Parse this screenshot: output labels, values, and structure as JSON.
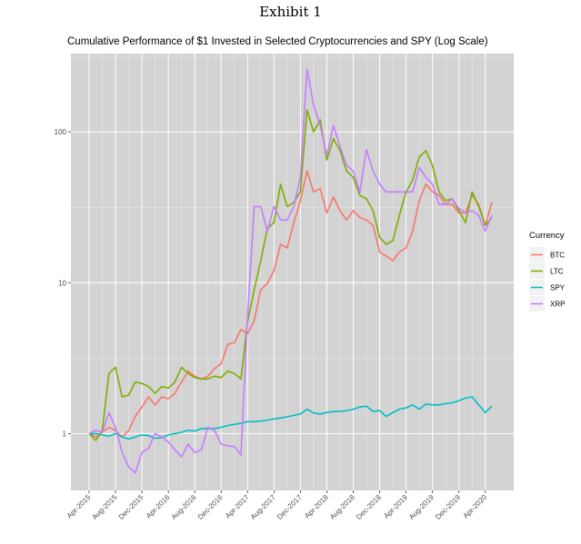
{
  "exhibit": "Exhibit 1",
  "chart_data": {
    "type": "line",
    "title": "Cumulative Performance of $1 Invested in Selected Cryptocurrencies and SPY (Log Scale)",
    "xlabel": "",
    "ylabel": "",
    "yscale": "log",
    "ylim": [
      0.42,
      330
    ],
    "y_ticks": [
      1,
      10,
      100
    ],
    "x_tick_labels": [
      "Apr-2015",
      "Aug-2015",
      "Dec-2015",
      "Apr-2016",
      "Aug-2016",
      "Dec-2016",
      "Apr-2017",
      "Aug-2017",
      "Dec-2017",
      "Apr-2018",
      "Aug-2018",
      "Dec-2018",
      "Apr-2019",
      "Aug-2019",
      "Dec-2019",
      "Apr-2020"
    ],
    "x_start": "Apr-2015",
    "x_end": "May-2020",
    "background": "#d3d3d3",
    "grid": true,
    "legend": {
      "title": "Currency",
      "position": "right"
    },
    "series": [
      {
        "name": "BTC",
        "color": "#f8766d",
        "values": [
          1.0,
          0.95,
          1.02,
          1.1,
          1.05,
          0.95,
          1.05,
          1.3,
          1.5,
          1.75,
          1.55,
          1.75,
          1.7,
          1.85,
          2.2,
          2.6,
          2.4,
          2.3,
          2.4,
          2.7,
          2.9,
          3.9,
          4.0,
          4.9,
          4.6,
          5.6,
          9.0,
          9.9,
          12.0,
          18.0,
          17.0,
          25.0,
          35.0,
          55.0,
          40.0,
          42.0,
          29.0,
          37.0,
          30.0,
          26.0,
          30.0,
          27.0,
          26.0,
          24.0,
          16.0,
          15.0,
          14.0,
          16.0,
          17.0,
          22.0,
          35.0,
          45.0,
          40.0,
          38.0,
          33.0,
          33.0,
          29.0,
          29.0,
          38.0,
          33.0,
          24.0,
          34.0
        ]
      },
      {
        "name": "LTC",
        "color": "#7cae00",
        "values": [
          1.0,
          0.9,
          1.05,
          2.5,
          2.75,
          1.75,
          1.8,
          2.2,
          2.15,
          2.05,
          1.85,
          2.05,
          2.0,
          2.2,
          2.75,
          2.5,
          2.35,
          2.3,
          2.3,
          2.4,
          2.35,
          2.6,
          2.5,
          2.3,
          5.5,
          9.0,
          14.0,
          23.0,
          25.0,
          45.0,
          32.0,
          34.0,
          40.0,
          140.0,
          100.0,
          120.0,
          65.0,
          90.0,
          75.0,
          55.0,
          50.0,
          38.0,
          36.0,
          30.0,
          20.0,
          18.0,
          19.0,
          28.0,
          40.0,
          48.0,
          68.0,
          75.0,
          60.0,
          40.0,
          35.0,
          36.0,
          30.0,
          25.0,
          40.0,
          32.0,
          24.0,
          27.0
        ]
      },
      {
        "name": "SPY",
        "color": "#00bfc4",
        "values": [
          1.0,
          1.0,
          0.98,
          0.96,
          1.0,
          0.95,
          0.92,
          0.95,
          0.98,
          0.97,
          0.93,
          0.94,
          0.98,
          1.0,
          1.02,
          1.05,
          1.04,
          1.08,
          1.08,
          1.08,
          1.1,
          1.13,
          1.15,
          1.17,
          1.2,
          1.2,
          1.21,
          1.23,
          1.25,
          1.27,
          1.29,
          1.32,
          1.35,
          1.45,
          1.37,
          1.35,
          1.38,
          1.4,
          1.4,
          1.42,
          1.45,
          1.5,
          1.52,
          1.4,
          1.42,
          1.3,
          1.38,
          1.45,
          1.48,
          1.55,
          1.45,
          1.57,
          1.55,
          1.55,
          1.58,
          1.6,
          1.65,
          1.72,
          1.75,
          1.55,
          1.38,
          1.52
        ]
      },
      {
        "name": "XRP",
        "color": "#c77cff",
        "values": [
          1.0,
          1.05,
          1.02,
          1.38,
          1.1,
          0.75,
          0.6,
          0.55,
          0.75,
          0.8,
          1.0,
          0.95,
          0.88,
          0.78,
          0.7,
          0.85,
          0.75,
          0.78,
          1.1,
          1.05,
          0.85,
          0.83,
          0.82,
          0.72,
          6.0,
          32.0,
          32.0,
          22.0,
          32.0,
          26.0,
          26.0,
          32.0,
          50.0,
          260.0,
          150.0,
          110.0,
          70.0,
          110.0,
          80.0,
          60.0,
          55.0,
          40.0,
          76.0,
          55.0,
          45.0,
          40.0,
          40.0,
          40.0,
          40.0,
          40.0,
          58.0,
          50.0,
          45.0,
          33.0,
          33.0,
          36.0,
          31.0,
          29.0,
          30.0,
          28.0,
          22.0,
          28.0
        ]
      }
    ]
  }
}
